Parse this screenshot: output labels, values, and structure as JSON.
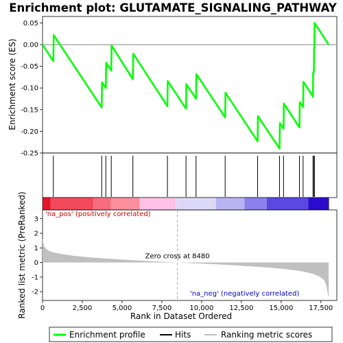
{
  "chart_data": {
    "type": "line",
    "title": "Enrichment plot: GLUTAMATE_SIGNALING_PATHWAY",
    "top_panel": {
      "ylabel": "Enrichment score (ES)",
      "ylim": [
        -0.25,
        0.065
      ],
      "yticks": [
        0.05,
        0.0,
        -0.05,
        -0.1,
        -0.15,
        -0.2,
        -0.25
      ],
      "ytick_labels": [
        "0.05",
        "0.00",
        "-0.05",
        "-0.10",
        "-0.15",
        "-0.20",
        "-0.25"
      ],
      "enrichment_profile": {
        "name": "Enrichment profile",
        "color": "#00ff00",
        "x": [
          0,
          680,
          700,
          3720,
          3740,
          3980,
          4000,
          4320,
          4340,
          5680,
          5700,
          7850,
          7870,
          9020,
          9040,
          9650,
          9670,
          11480,
          11500,
          13520,
          13540,
          14900,
          14920,
          15150,
          15170,
          16150,
          16170,
          16380,
          16400,
          17000,
          17010,
          17060,
          17070,
          17090,
          17100,
          17990
        ],
        "y": [
          0.0,
          -0.038,
          0.022,
          -0.145,
          -0.087,
          -0.1,
          -0.042,
          -0.06,
          -0.002,
          -0.08,
          -0.021,
          -0.142,
          -0.084,
          -0.148,
          -0.091,
          -0.125,
          -0.068,
          -0.168,
          -0.111,
          -0.223,
          -0.165,
          -0.24,
          -0.181,
          -0.194,
          -0.136,
          -0.191,
          -0.133,
          -0.144,
          -0.086,
          -0.12,
          -0.064,
          -0.064,
          -0.007,
          -0.007,
          0.05,
          0.0
        ]
      }
    },
    "hits": {
      "name": "Hits",
      "positions": [
        680,
        3720,
        3980,
        4320,
        5680,
        7850,
        9020,
        9650,
        11480,
        13520,
        14900,
        15150,
        16150,
        16380,
        17000,
        17060,
        17090
      ]
    },
    "bottom_panel": {
      "ylabel": "Ranked list metric (PreRanked)",
      "ylim": [
        -2.6,
        3.6
      ],
      "yticks": [
        3,
        2,
        1,
        0,
        -1,
        -2
      ],
      "ytick_labels": [
        "3",
        "2",
        "1",
        "0",
        "-1",
        "-2"
      ],
      "ranking_metric": {
        "name": "Ranking metric scores",
        "color": "#c0c0c0",
        "x": [
          0,
          100,
          300,
          600,
          1000,
          2000,
          3000,
          4000,
          5000,
          6000,
          7000,
          8000,
          8480,
          9000,
          10000,
          11000,
          12000,
          13000,
          14000,
          15000,
          16000,
          16500,
          17000,
          17400,
          17700,
          17850,
          17990
        ],
        "y": [
          1.65,
          1.1,
          0.85,
          0.72,
          0.62,
          0.45,
          0.35,
          0.27,
          0.2,
          0.14,
          0.08,
          0.03,
          0.0,
          -0.03,
          -0.08,
          -0.13,
          -0.19,
          -0.26,
          -0.33,
          -0.42,
          -0.55,
          -0.65,
          -0.78,
          -0.95,
          -1.2,
          -1.6,
          -2.45
        ]
      },
      "zero_cross_label": "Zero cross at 8480",
      "zero_cross": 8480,
      "pos_label": "'na_pos' (positively correlated)",
      "neg_label": "'na_neg' (negatively correlated)"
    },
    "xlabel": "Rank in Dataset Ordered",
    "xlim": [
      0,
      18500
    ],
    "xticks": [
      0,
      2500,
      5000,
      7500,
      10000,
      12500,
      15000,
      17500
    ],
    "xtick_labels": [
      "0",
      "2,500",
      "5,000",
      "7,500",
      "10,000",
      "12,500",
      "15,000",
      "17,500"
    ],
    "colorbar": {
      "max_rank": 17990,
      "segments": [
        {
          "end": 500,
          "color": "#e8152a"
        },
        {
          "end": 3200,
          "color": "#f24a5c"
        },
        {
          "end": 4300,
          "color": "#f76d7e"
        },
        {
          "end": 6100,
          "color": "#fa8f9b"
        },
        {
          "end": 8400,
          "color": "#ffc2e6"
        },
        {
          "end": 10900,
          "color": "#dcd9f8"
        },
        {
          "end": 12700,
          "color": "#b8b4f2"
        },
        {
          "end": 14100,
          "color": "#8a82ea"
        },
        {
          "end": 16700,
          "color": "#5a48e0"
        },
        {
          "end": 17990,
          "color": "#2a0dcc"
        }
      ]
    },
    "legend": {
      "placement": "bottom",
      "items": [
        {
          "label": "Enrichment profile",
          "color": "#00ff00"
        },
        {
          "label": "Hits",
          "color": "#000000"
        },
        {
          "label": "Ranking metric scores",
          "color": "#c0c0c0"
        }
      ]
    },
    "colors": {
      "pos_text": "#cc0000",
      "neg_text": "#0000cc",
      "zero_line": "#aaaaaa"
    }
  }
}
